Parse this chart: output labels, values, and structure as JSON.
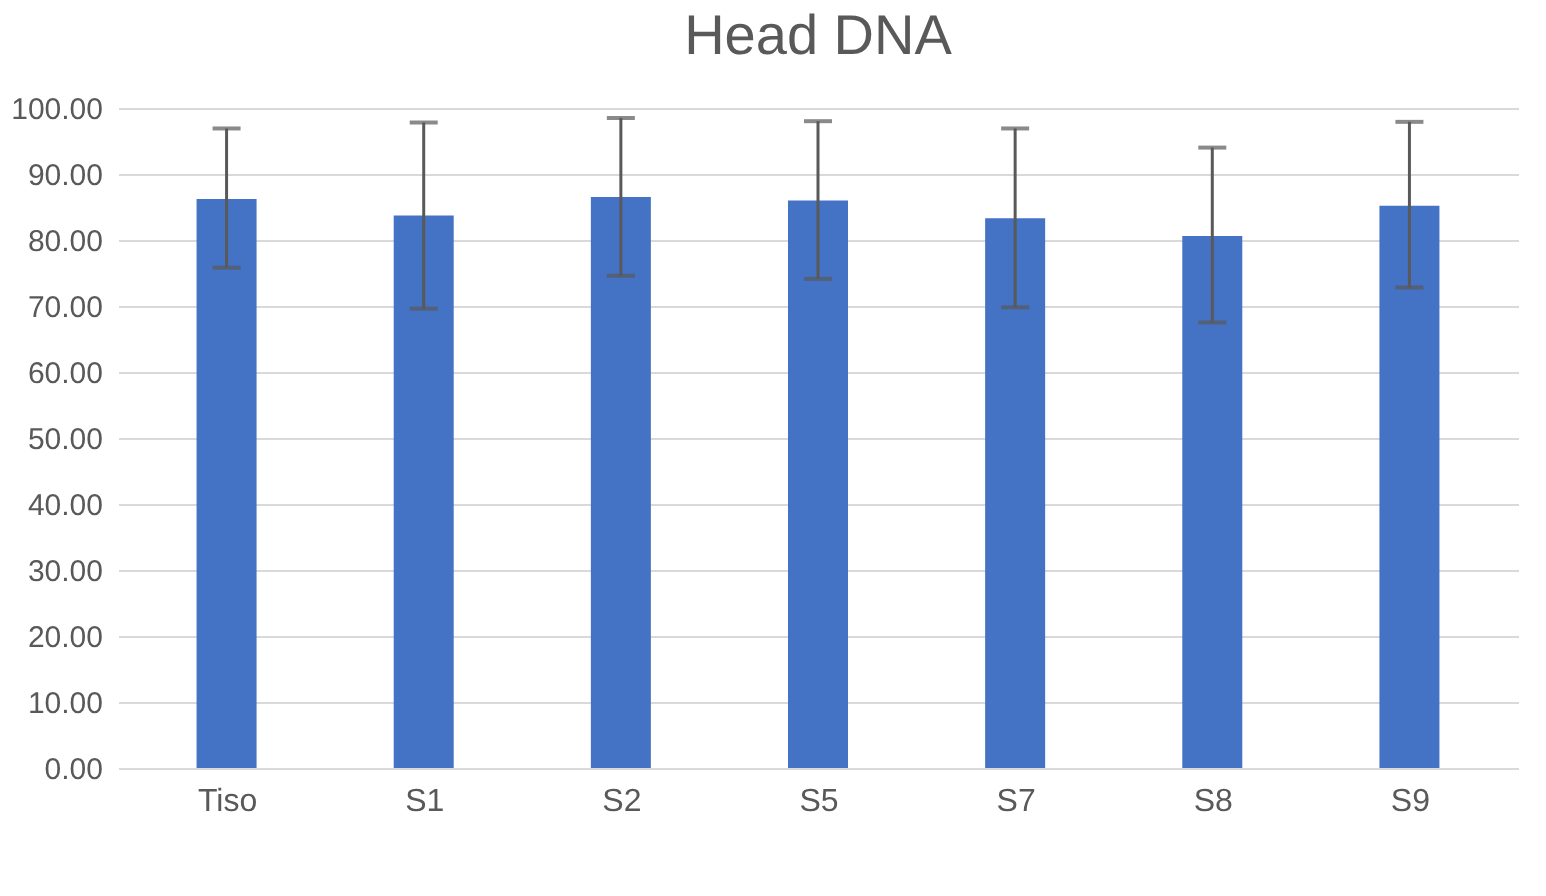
{
  "chart_data": {
    "type": "bar",
    "title": "Head DNA",
    "categories": [
      "Tiso",
      "S1",
      "S2",
      "S5",
      "S7",
      "S8",
      "S9"
    ],
    "values": [
      86.2,
      83.7,
      86.5,
      86.0,
      83.3,
      80.6,
      85.2
    ],
    "errors": [
      [
        75.8,
        96.9
      ],
      [
        69.6,
        97.8
      ],
      [
        74.6,
        98.5
      ],
      [
        74.1,
        98.0
      ],
      [
        69.8,
        96.9
      ],
      [
        67.5,
        94.0
      ],
      [
        72.8,
        97.9
      ]
    ],
    "color": "#4472c4",
    "ylim": [
      0,
      100
    ],
    "yticks": [
      {
        "value": 0,
        "label": "0.00"
      },
      {
        "value": 10,
        "label": "10.00"
      },
      {
        "value": 20,
        "label": "20.00"
      },
      {
        "value": 30,
        "label": "30.00"
      },
      {
        "value": 40,
        "label": "40.00"
      },
      {
        "value": 50,
        "label": "50.00"
      },
      {
        "value": 60,
        "label": "60.00"
      },
      {
        "value": 70,
        "label": "70.00"
      },
      {
        "value": 80,
        "label": "80.00"
      },
      {
        "value": 90,
        "label": "90.00"
      },
      {
        "value": 100,
        "label": "100.00"
      }
    ],
    "grid": "y"
  }
}
